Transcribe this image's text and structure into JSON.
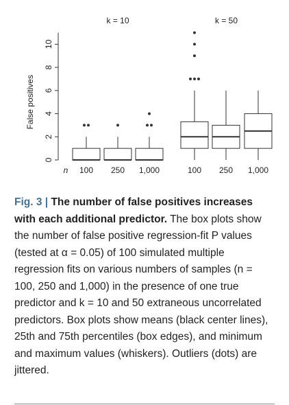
{
  "chart_data": {
    "type": "box",
    "ylabel": "False positives",
    "ylim": [
      0,
      11
    ],
    "yticks": [
      0,
      2,
      4,
      6,
      8,
      10
    ],
    "panels": [
      {
        "label": "k = 10",
        "categories": [
          "100",
          "250",
          "1,000"
        ],
        "boxes": [
          {
            "whisker_low": 0,
            "q1": 0,
            "median": 0,
            "q3": 1,
            "whisker_high": 2,
            "outliers": [
              3,
              3
            ]
          },
          {
            "whisker_low": 0,
            "q1": 0,
            "median": 0,
            "q3": 1,
            "whisker_high": 2,
            "outliers": [
              3
            ]
          },
          {
            "whisker_low": 0,
            "q1": 0,
            "median": 0,
            "q3": 1,
            "whisker_high": 2,
            "outliers": [
              3,
              3,
              4
            ]
          }
        ]
      },
      {
        "label": "k = 50",
        "categories": [
          "100",
          "250",
          "1,000"
        ],
        "boxes": [
          {
            "whisker_low": 0,
            "q1": 1,
            "median": 2,
            "q3": 3.3,
            "whisker_high": 6,
            "outliers": [
              7,
              7,
              7,
              9,
              10,
              11
            ]
          },
          {
            "whisker_low": 0,
            "q1": 1,
            "median": 2,
            "q3": 3,
            "whisker_high": 6,
            "outliers": []
          },
          {
            "whisker_low": 0,
            "q1": 1,
            "median": 2.5,
            "q3": 4,
            "whisker_high": 6,
            "outliers": []
          }
        ]
      }
    ],
    "n_label": "n"
  },
  "caption": {
    "fig_label": "Fig. 3 |",
    "title": "The number of false positives increases with each additional predictor.",
    "body": "The box plots show the number of false positive regression-fit P values (tested at α = 0.05) of 100 simulated multiple regression fits on various numbers of samples (n = 100, 250 and 1,000) in the presence of one true predictor and k = 10 and 50 extraneous uncorrelated predictors. Box plots show means (black center lines), 25th and 75th percentiles (box edges), and minimum and maximum values (whiskers). Outliers (dots) are jittered."
  }
}
